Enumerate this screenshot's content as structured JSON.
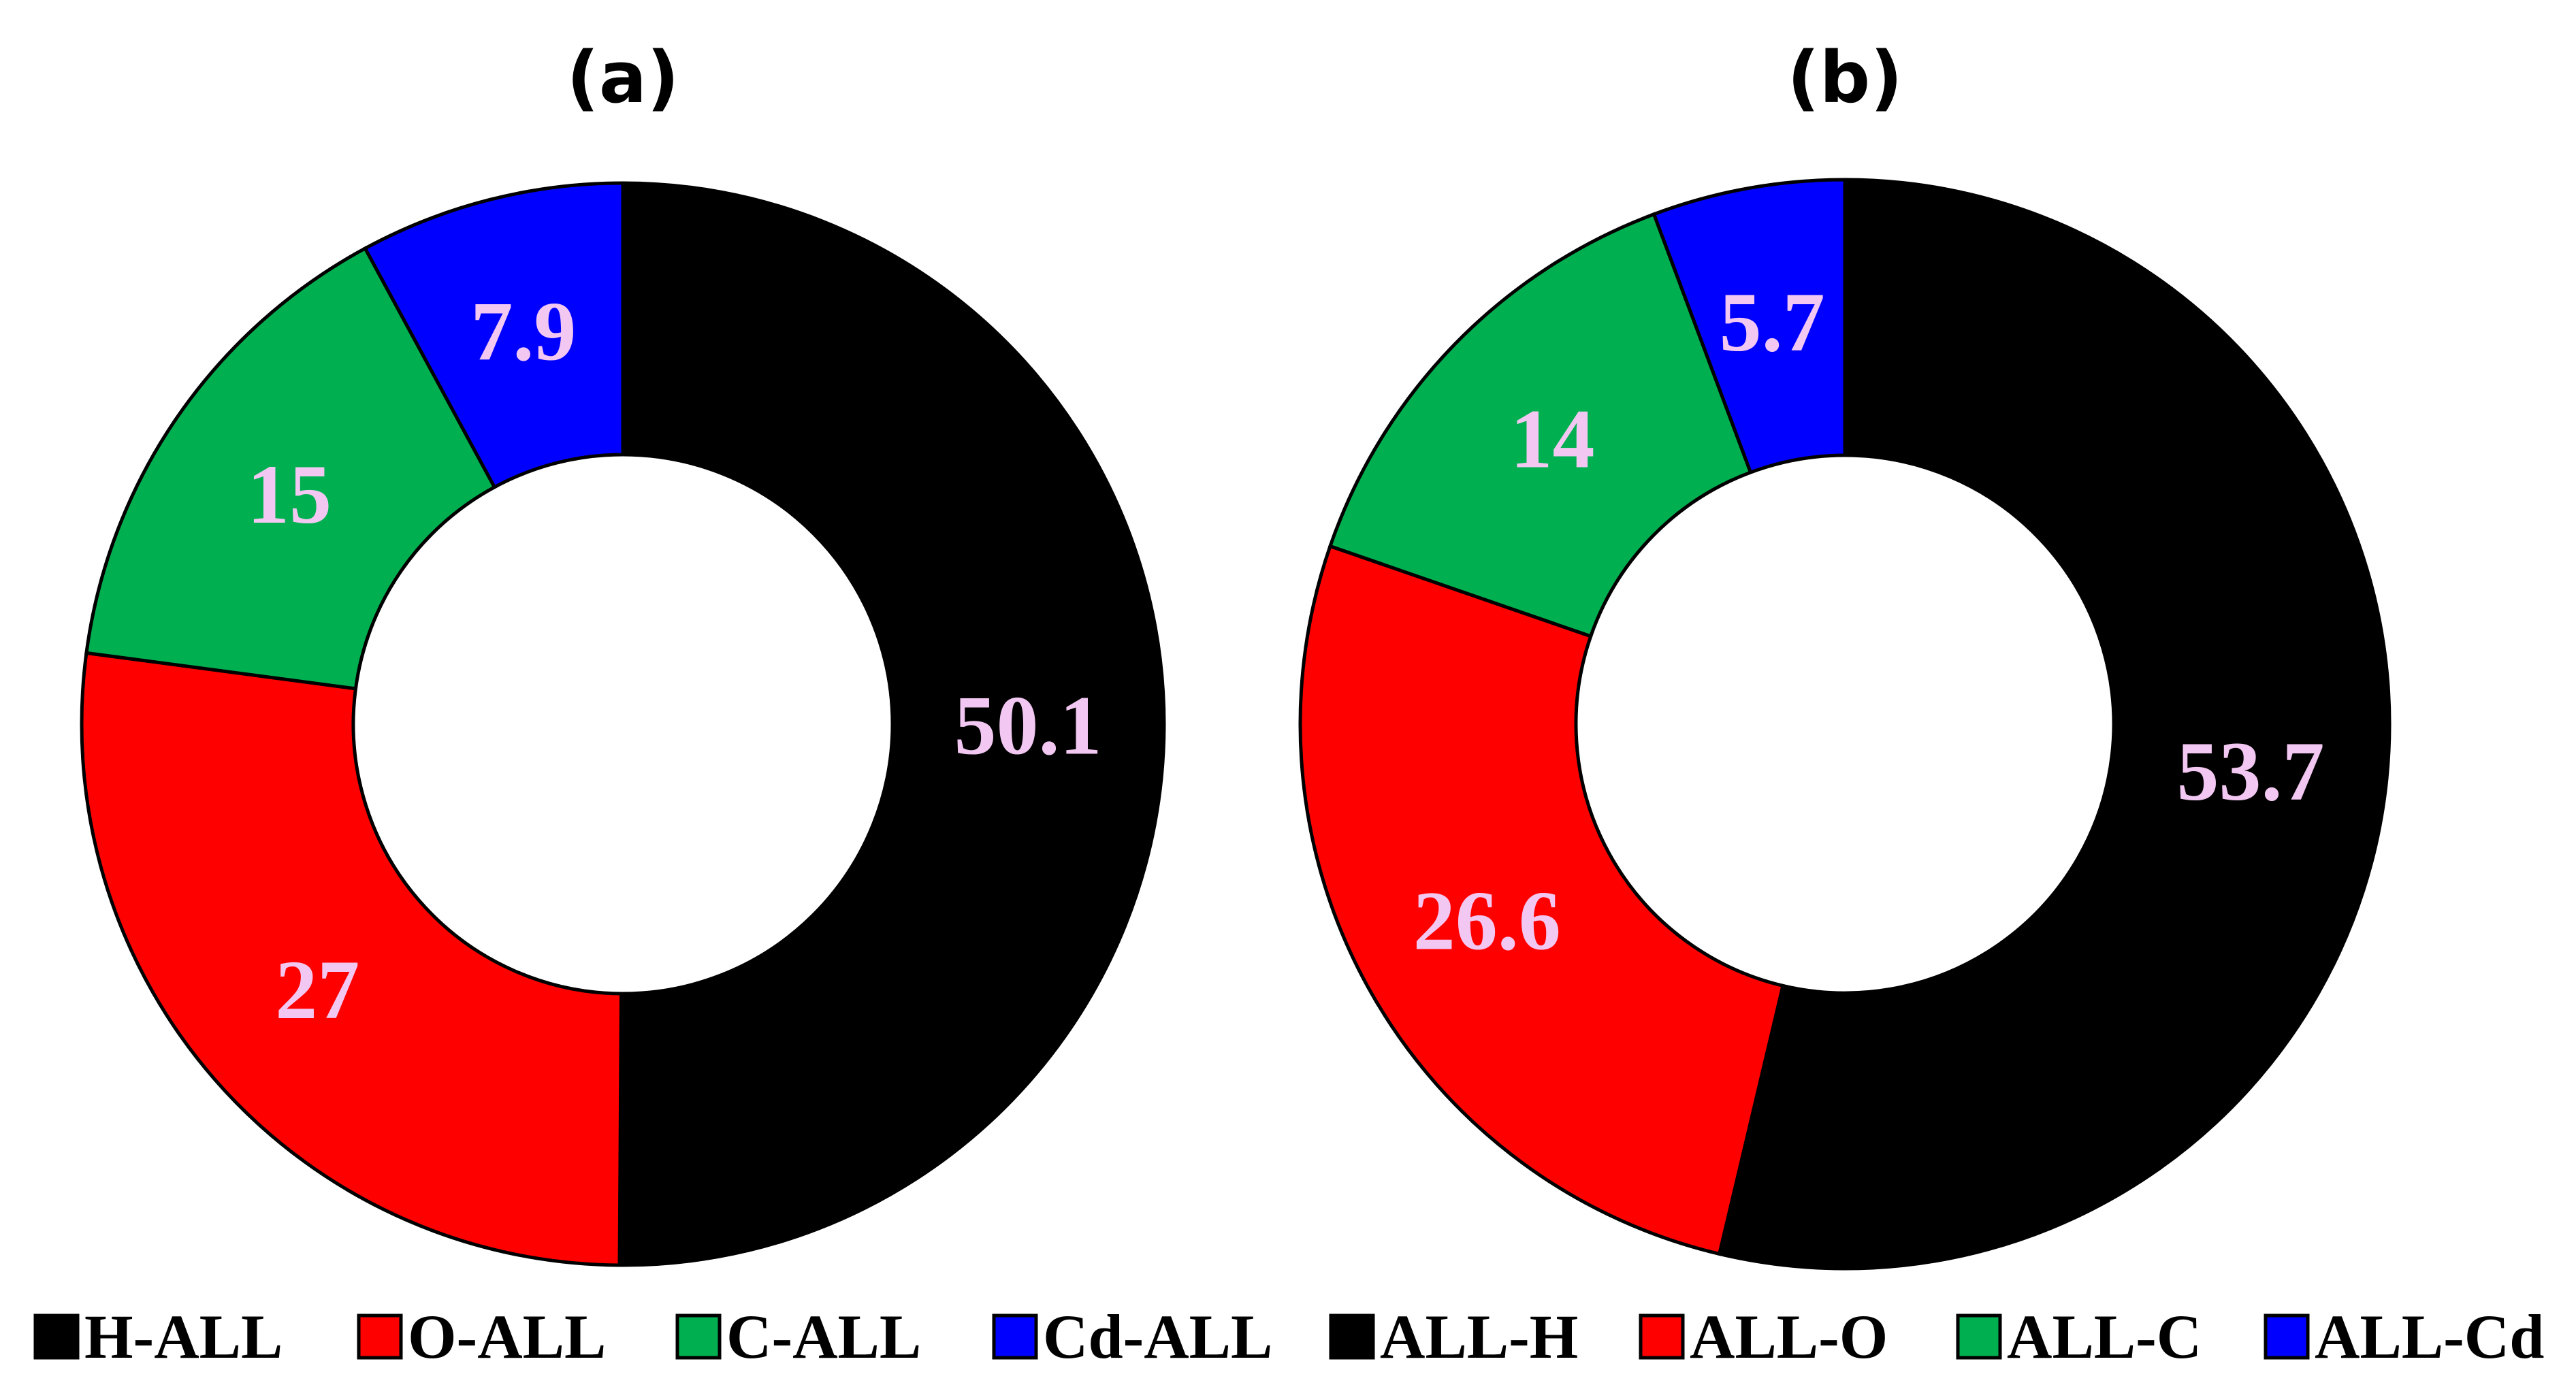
{
  "chart_data": [
    {
      "type": "pie",
      "title": "(a)",
      "categories": [
        "H-ALL",
        "O-ALL",
        "C-ALL",
        "Cd-ALL"
      ],
      "values": [
        50.1,
        27,
        15,
        7.9
      ],
      "value_labels": [
        "50.1",
        "27",
        "15",
        "7.9"
      ],
      "colors": [
        "#000000",
        "#ff0000",
        "#00b050",
        "#0000ff"
      ],
      "donut": true
    },
    {
      "type": "pie",
      "title": "(b)",
      "categories": [
        "ALL-H",
        "ALL-O",
        "ALL-C",
        "ALL-Cd"
      ],
      "values": [
        53.7,
        26.6,
        14,
        5.7
      ],
      "value_labels": [
        "53.7",
        "26.6",
        "14",
        "5.7"
      ],
      "colors": [
        "#000000",
        "#ff0000",
        "#00b050",
        "#0000ff"
      ],
      "donut": true
    }
  ],
  "legend": {
    "placement": "bottom",
    "items": [
      {
        "label": "H-ALL",
        "color": "#000000"
      },
      {
        "label": "O-ALL",
        "color": "#ff0000"
      },
      {
        "label": "C-ALL",
        "color": "#00b050"
      },
      {
        "label": "Cd-ALL",
        "color": "#0000ff"
      },
      {
        "label": "ALL-H",
        "color": "#000000"
      },
      {
        "label": "ALL-O",
        "color": "#ff0000"
      },
      {
        "label": "ALL-C",
        "color": "#00b050"
      },
      {
        "label": "ALL-Cd",
        "color": "#0000ff"
      }
    ]
  }
}
